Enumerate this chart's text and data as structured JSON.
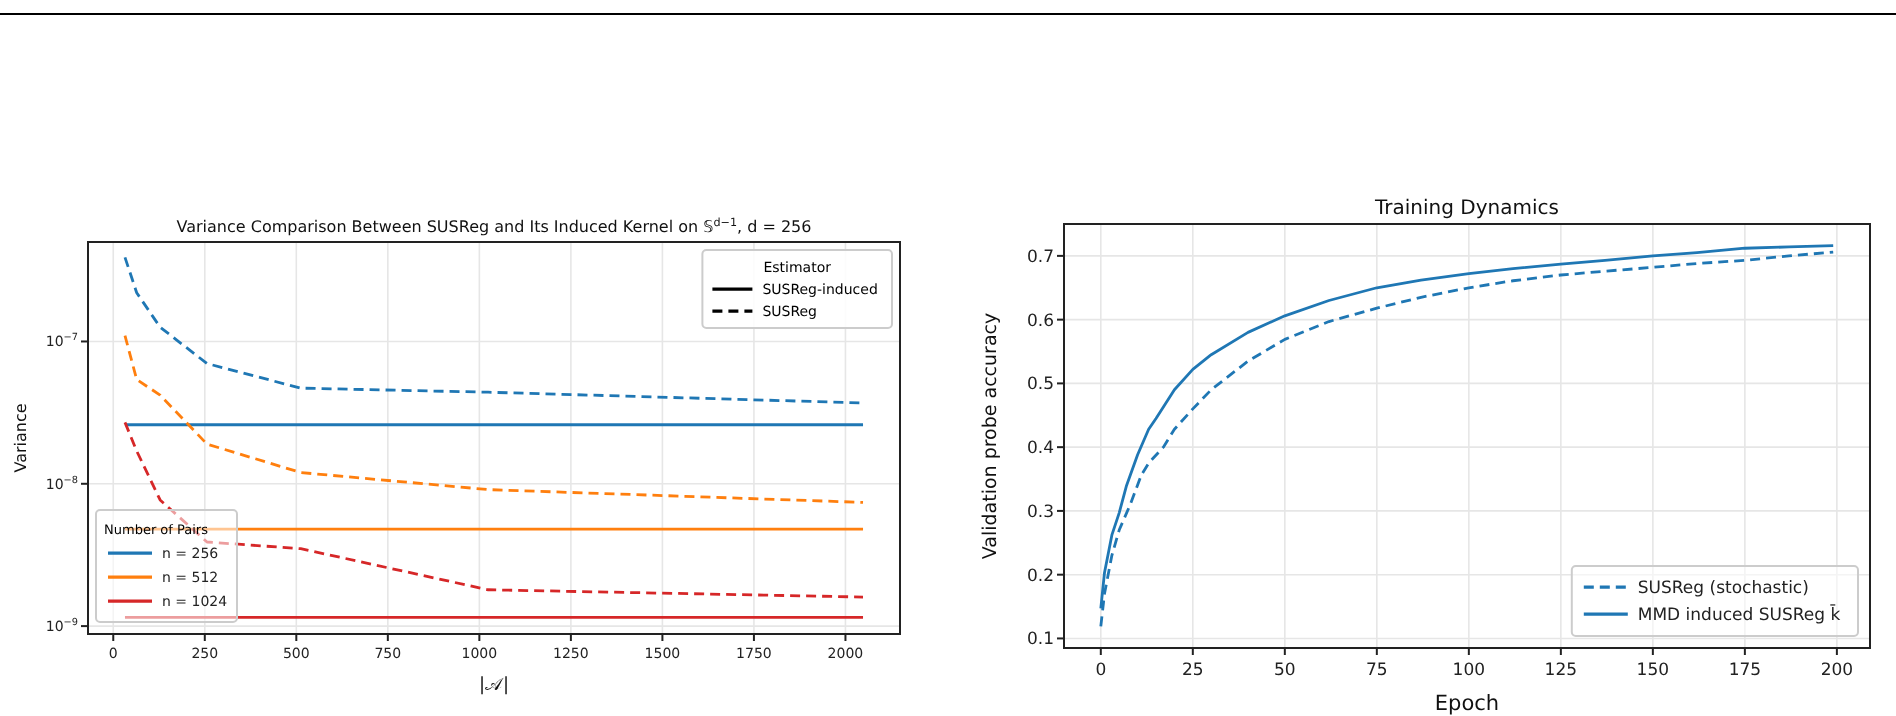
{
  "chart_data": [
    {
      "type": "line",
      "title": "Variance Comparison Between SUSReg and Its Induced Kernel on 𝕊$^{d−1}$, d = 256",
      "xlabel": "|𝒜|",
      "ylabel": "Variance",
      "log": "y",
      "grid": true,
      "legend": "bottom left",
      "legend_title": "Number of Pairs",
      "annotations": [
        "Estimator",
        "SUSReg-induced",
        "SUSReg"
      ],
      "xlim": [
        -69,
        2149
      ],
      "ylim": [
        8.8e-10,
        5e-07
      ],
      "xticks": [
        0,
        250,
        500,
        750,
        1000,
        1250,
        1500,
        1750,
        2000
      ],
      "yticks": [
        {
          "value": 1e-09,
          "label": "10$^{−9}$"
        },
        {
          "value": 1e-08,
          "label": "10$^{−8}$"
        },
        {
          "value": 1e-07,
          "label": "10$^{−7}$"
        }
      ],
      "series": [
        {
          "name": "n = 256",
          "color": "#1f77b4",
          "line_style": "solid",
          "x": [
            32,
            2048
          ],
          "values": [
            2.6e-08,
            2.6e-08
          ]
        },
        {
          "name": "n = 512",
          "color": "#ff7f0e",
          "line_style": "solid",
          "x": [
            32,
            2048
          ],
          "values": [
            4.8e-09,
            4.8e-09
          ]
        },
        {
          "name": "n = 1024",
          "color": "#d62728",
          "line_style": "solid",
          "x": [
            32,
            2048
          ],
          "values": [
            1.15e-09,
            1.15e-09
          ]
        },
        {
          "color": "#1f77b4",
          "line_style": "dashed",
          "x": [
            32,
            64,
            128,
            256,
            512,
            1024,
            2048
          ],
          "values": [
            3.9e-07,
            2.2e-07,
            1.26e-07,
            7e-08,
            4.7e-08,
            4.4e-08,
            3.7e-08
          ]
        },
        {
          "color": "#ff7f0e",
          "line_style": "dashed",
          "x": [
            32,
            64,
            128,
            256,
            512,
            1024,
            2048
          ],
          "values": [
            1.1e-07,
            5.4e-08,
            4.2e-08,
            1.9e-08,
            1.2e-08,
            9.1e-09,
            7.4e-09
          ]
        },
        {
          "color": "#d62728",
          "line_style": "dashed",
          "x": [
            32,
            64,
            128,
            256,
            512,
            1024,
            2048
          ],
          "values": [
            2.7e-08,
            1.7e-08,
            7.7e-09,
            3.9e-09,
            3.5e-09,
            1.8e-09,
            1.6e-09
          ]
        }
      ]
    },
    {
      "type": "line",
      "title": "Training Dynamics",
      "xlabel": "Epoch",
      "ylabel": "Validation probe accuracy",
      "grid": true,
      "legend": "bottom right",
      "xlim": [
        -10,
        209
      ],
      "ylim": [
        0.085,
        0.75
      ],
      "xticks": [
        0,
        25,
        50,
        75,
        100,
        125,
        150,
        175,
        200
      ],
      "yticks": [
        0.1,
        0.2,
        0.3,
        0.4,
        0.5,
        0.6,
        0.7
      ],
      "series": [
        {
          "name": "SUSReg (stochastic)",
          "color": "#1f77b4",
          "line_style": "dashed",
          "x": [
            0,
            1,
            3,
            5,
            8,
            11,
            13,
            17,
            20,
            25,
            30,
            40,
            50,
            62,
            75,
            87,
            100,
            112,
            125,
            137,
            150,
            162,
            175,
            187,
            199
          ],
          "values": [
            0.119,
            0.17,
            0.23,
            0.27,
            0.31,
            0.356,
            0.375,
            0.4,
            0.428,
            0.46,
            0.49,
            0.535,
            0.569,
            0.597,
            0.618,
            0.635,
            0.65,
            0.661,
            0.67,
            0.676,
            0.682,
            0.688,
            0.693,
            0.7,
            0.706
          ]
        },
        {
          "name": "MMD induced SUSReg k̄",
          "color": "#1f77b4",
          "line_style": "solid",
          "x": [
            0,
            1,
            3,
            5,
            7,
            10,
            13,
            15,
            20,
            25,
            30,
            40,
            50,
            62,
            75,
            87,
            100,
            112,
            125,
            137,
            150,
            162,
            175,
            187,
            199
          ],
          "values": [
            0.147,
            0.203,
            0.262,
            0.297,
            0.34,
            0.388,
            0.428,
            0.445,
            0.49,
            0.522,
            0.545,
            0.58,
            0.606,
            0.63,
            0.65,
            0.662,
            0.672,
            0.68,
            0.687,
            0.693,
            0.7,
            0.705,
            0.712,
            0.714,
            0.716
          ]
        }
      ]
    }
  ]
}
